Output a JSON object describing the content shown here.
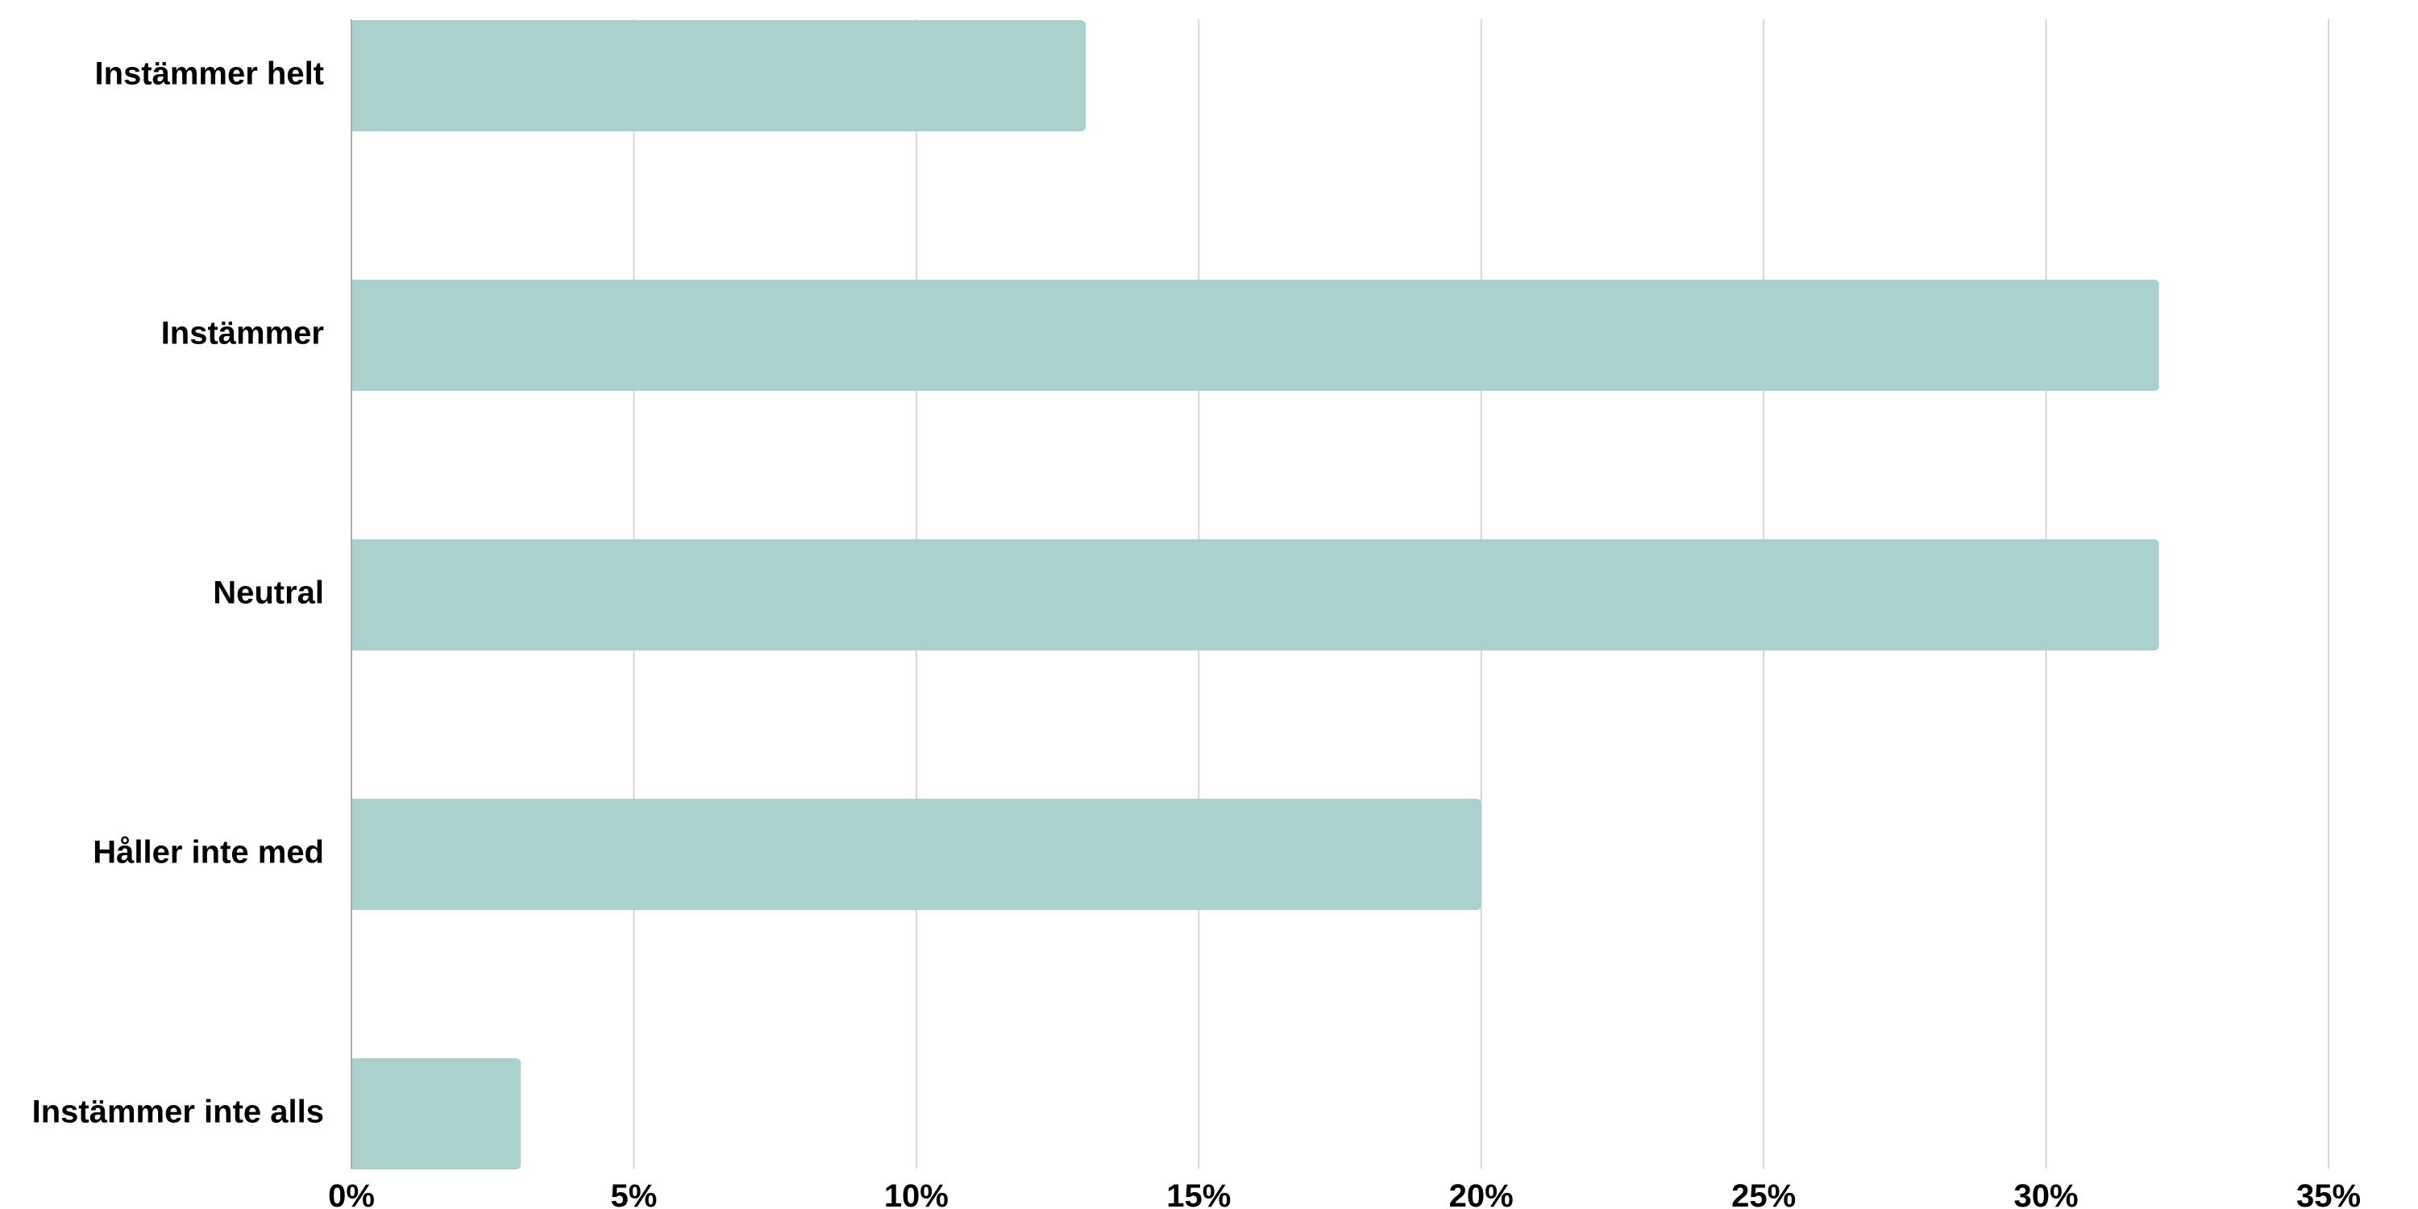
{
  "chart_data": {
    "type": "bar",
    "orientation": "horizontal",
    "categories": [
      "Instämmer helt",
      "Instämmer",
      "Neutral",
      "Håller inte med",
      "Instämmer inte alls"
    ],
    "values": [
      13,
      32,
      32,
      20,
      3
    ],
    "value_unit": "%",
    "title": "",
    "xlabel": "",
    "ylabel": "",
    "xlim": [
      0,
      35
    ],
    "x_ticks": [
      0,
      5,
      10,
      15,
      20,
      25,
      30,
      35
    ],
    "x_tick_labels": [
      "0%",
      "5%",
      "10%",
      "15%",
      "20%",
      "25%",
      "30%",
      "35%"
    ],
    "grid": true,
    "legend": "none",
    "colors": {
      "bar": "#abd1ce",
      "grid": "#d6d6d6",
      "axis": "#aaaaaa",
      "text": "#000000"
    }
  }
}
